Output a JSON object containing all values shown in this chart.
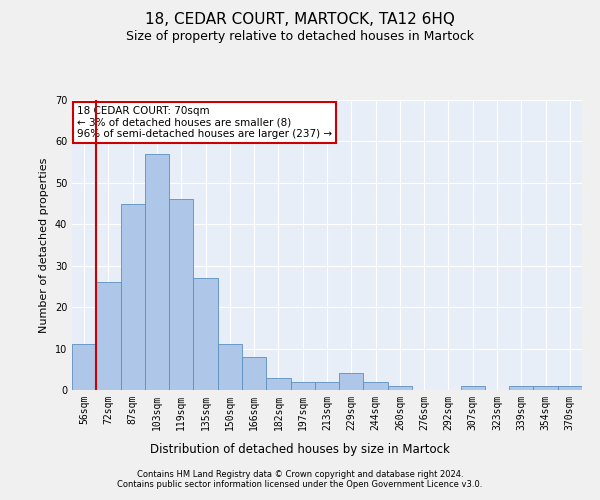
{
  "title": "18, CEDAR COURT, MARTOCK, TA12 6HQ",
  "subtitle": "Size of property relative to detached houses in Martock",
  "xlabel": "Distribution of detached houses by size in Martock",
  "ylabel": "Number of detached properties",
  "categories": [
    "56sqm",
    "72sqm",
    "87sqm",
    "103sqm",
    "119sqm",
    "135sqm",
    "150sqm",
    "166sqm",
    "182sqm",
    "197sqm",
    "213sqm",
    "229sqm",
    "244sqm",
    "260sqm",
    "276sqm",
    "292sqm",
    "307sqm",
    "323sqm",
    "339sqm",
    "354sqm",
    "370sqm"
  ],
  "values": [
    11,
    26,
    45,
    57,
    46,
    27,
    11,
    8,
    3,
    2,
    2,
    4,
    2,
    1,
    0,
    0,
    1,
    0,
    1,
    1,
    1
  ],
  "bar_color": "#aec6e8",
  "bar_edge_color": "#5a8fc0",
  "vline_x_index": 1,
  "vline_color": "#cc0000",
  "annotation_title": "18 CEDAR COURT: 70sqm",
  "annotation_line1": "← 3% of detached houses are smaller (8)",
  "annotation_line2": "96% of semi-detached houses are larger (237) →",
  "annotation_box_facecolor": "#ffffff",
  "annotation_box_edgecolor": "#cc0000",
  "ylim": [
    0,
    70
  ],
  "yticks": [
    0,
    10,
    20,
    30,
    40,
    50,
    60,
    70
  ],
  "background_color": "#e8eef7",
  "grid_color": "#ffffff",
  "fig_facecolor": "#f0f0f0",
  "footer1": "Contains HM Land Registry data © Crown copyright and database right 2024.",
  "footer2": "Contains public sector information licensed under the Open Government Licence v3.0.",
  "title_fontsize": 11,
  "subtitle_fontsize": 9,
  "xlabel_fontsize": 8.5,
  "ylabel_fontsize": 8,
  "tick_fontsize": 7,
  "annotation_fontsize": 7.5,
  "footer_fontsize": 6.0
}
